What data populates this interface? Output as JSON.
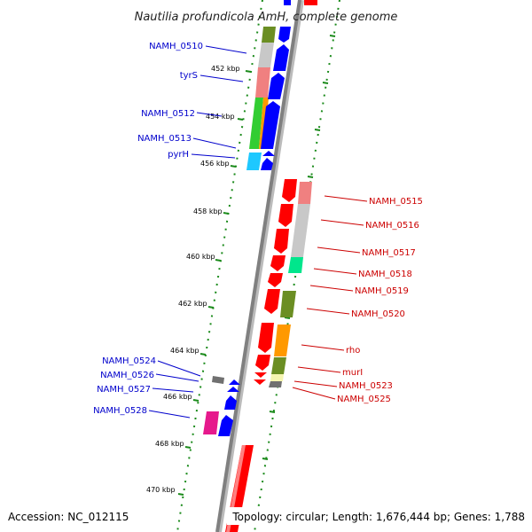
{
  "title": "Nautilia profundicola AmH, complete genome",
  "accession": "Accession: NC_012115",
  "topology": "Topology: circular; Length: 1,676,444 bp; Genes: 1,788",
  "colors": {
    "backbone": "#808080",
    "leftLabel": "#0000cc",
    "rightLabel": "#cc0000",
    "dotted": "#1a8a1a"
  },
  "ticks": [
    "452 kbp",
    "454 kbp",
    "456 kbp",
    "458 kbp",
    "460 kbp",
    "462 kbp",
    "464 kbp",
    "466 kbp",
    "468 kbp",
    "470 kbp"
  ],
  "leftGenes": [
    "NAMH_0510",
    "tyrS",
    "NAMH_0512",
    "NAMH_0513",
    "pyrH",
    "NAMH_0524",
    "NAMH_0526",
    "NAMH_0527",
    "NAMH_0528"
  ],
  "rightGenes": [
    "NAMH_0515",
    "NAMH_0516",
    "NAMH_0517",
    "NAMH_0518",
    "NAMH_0519",
    "NAMH_0520",
    "rho",
    "murI",
    "NAMH_0523",
    "NAMH_0525"
  ]
}
